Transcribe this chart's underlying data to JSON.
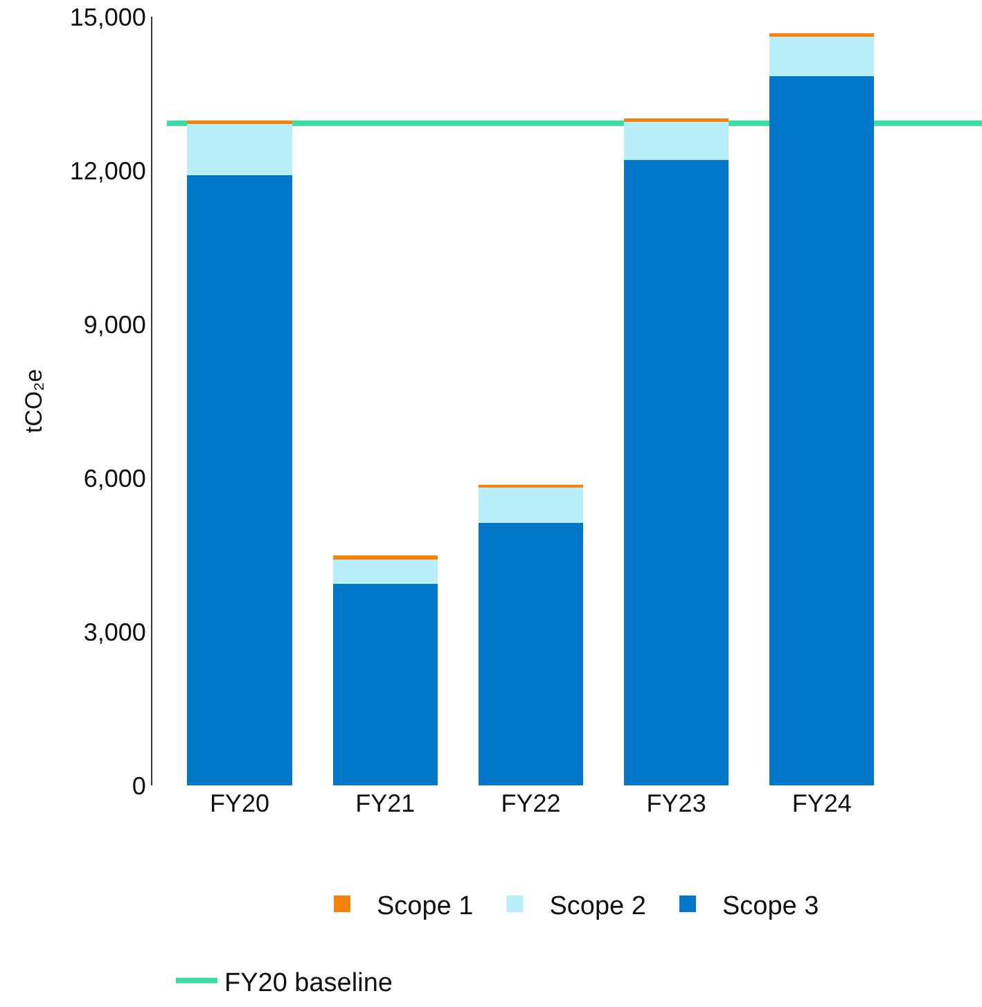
{
  "chart_data": {
    "type": "bar",
    "stacked": true,
    "ylabel": "tCO₂e",
    "categories": [
      "FY20",
      "FY21",
      "FY22",
      "FY23",
      "FY24"
    ],
    "series": [
      {
        "name": "Scope 3",
        "color": "#0077c8",
        "values": [
          11900,
          3930,
          5120,
          12200,
          13840
        ]
      },
      {
        "name": "Scope 2",
        "color": "#b8eefa",
        "values": [
          1000,
          500,
          690,
          750,
          770
        ]
      },
      {
        "name": "Scope 1",
        "color": "#f5820a",
        "values": [
          70,
          50,
          60,
          60,
          60
        ]
      }
    ],
    "ref_lines": [
      {
        "axis": "y",
        "value": 12920,
        "label": "FY20 baseline",
        "color": "#3ddca5",
        "line_style": "solid"
      }
    ],
    "ylim": [
      0,
      15000
    ],
    "yticks": [
      {
        "value": 0,
        "label": "0"
      },
      {
        "value": 3000,
        "label": "3,000"
      },
      {
        "value": 6000,
        "label": "6,000"
      },
      {
        "value": 9000,
        "label": "9,000"
      },
      {
        "value": 12000,
        "label": "12,000"
      },
      {
        "value": 15000,
        "label": "15,000"
      }
    ],
    "grid": false,
    "legend": "bottom"
  }
}
